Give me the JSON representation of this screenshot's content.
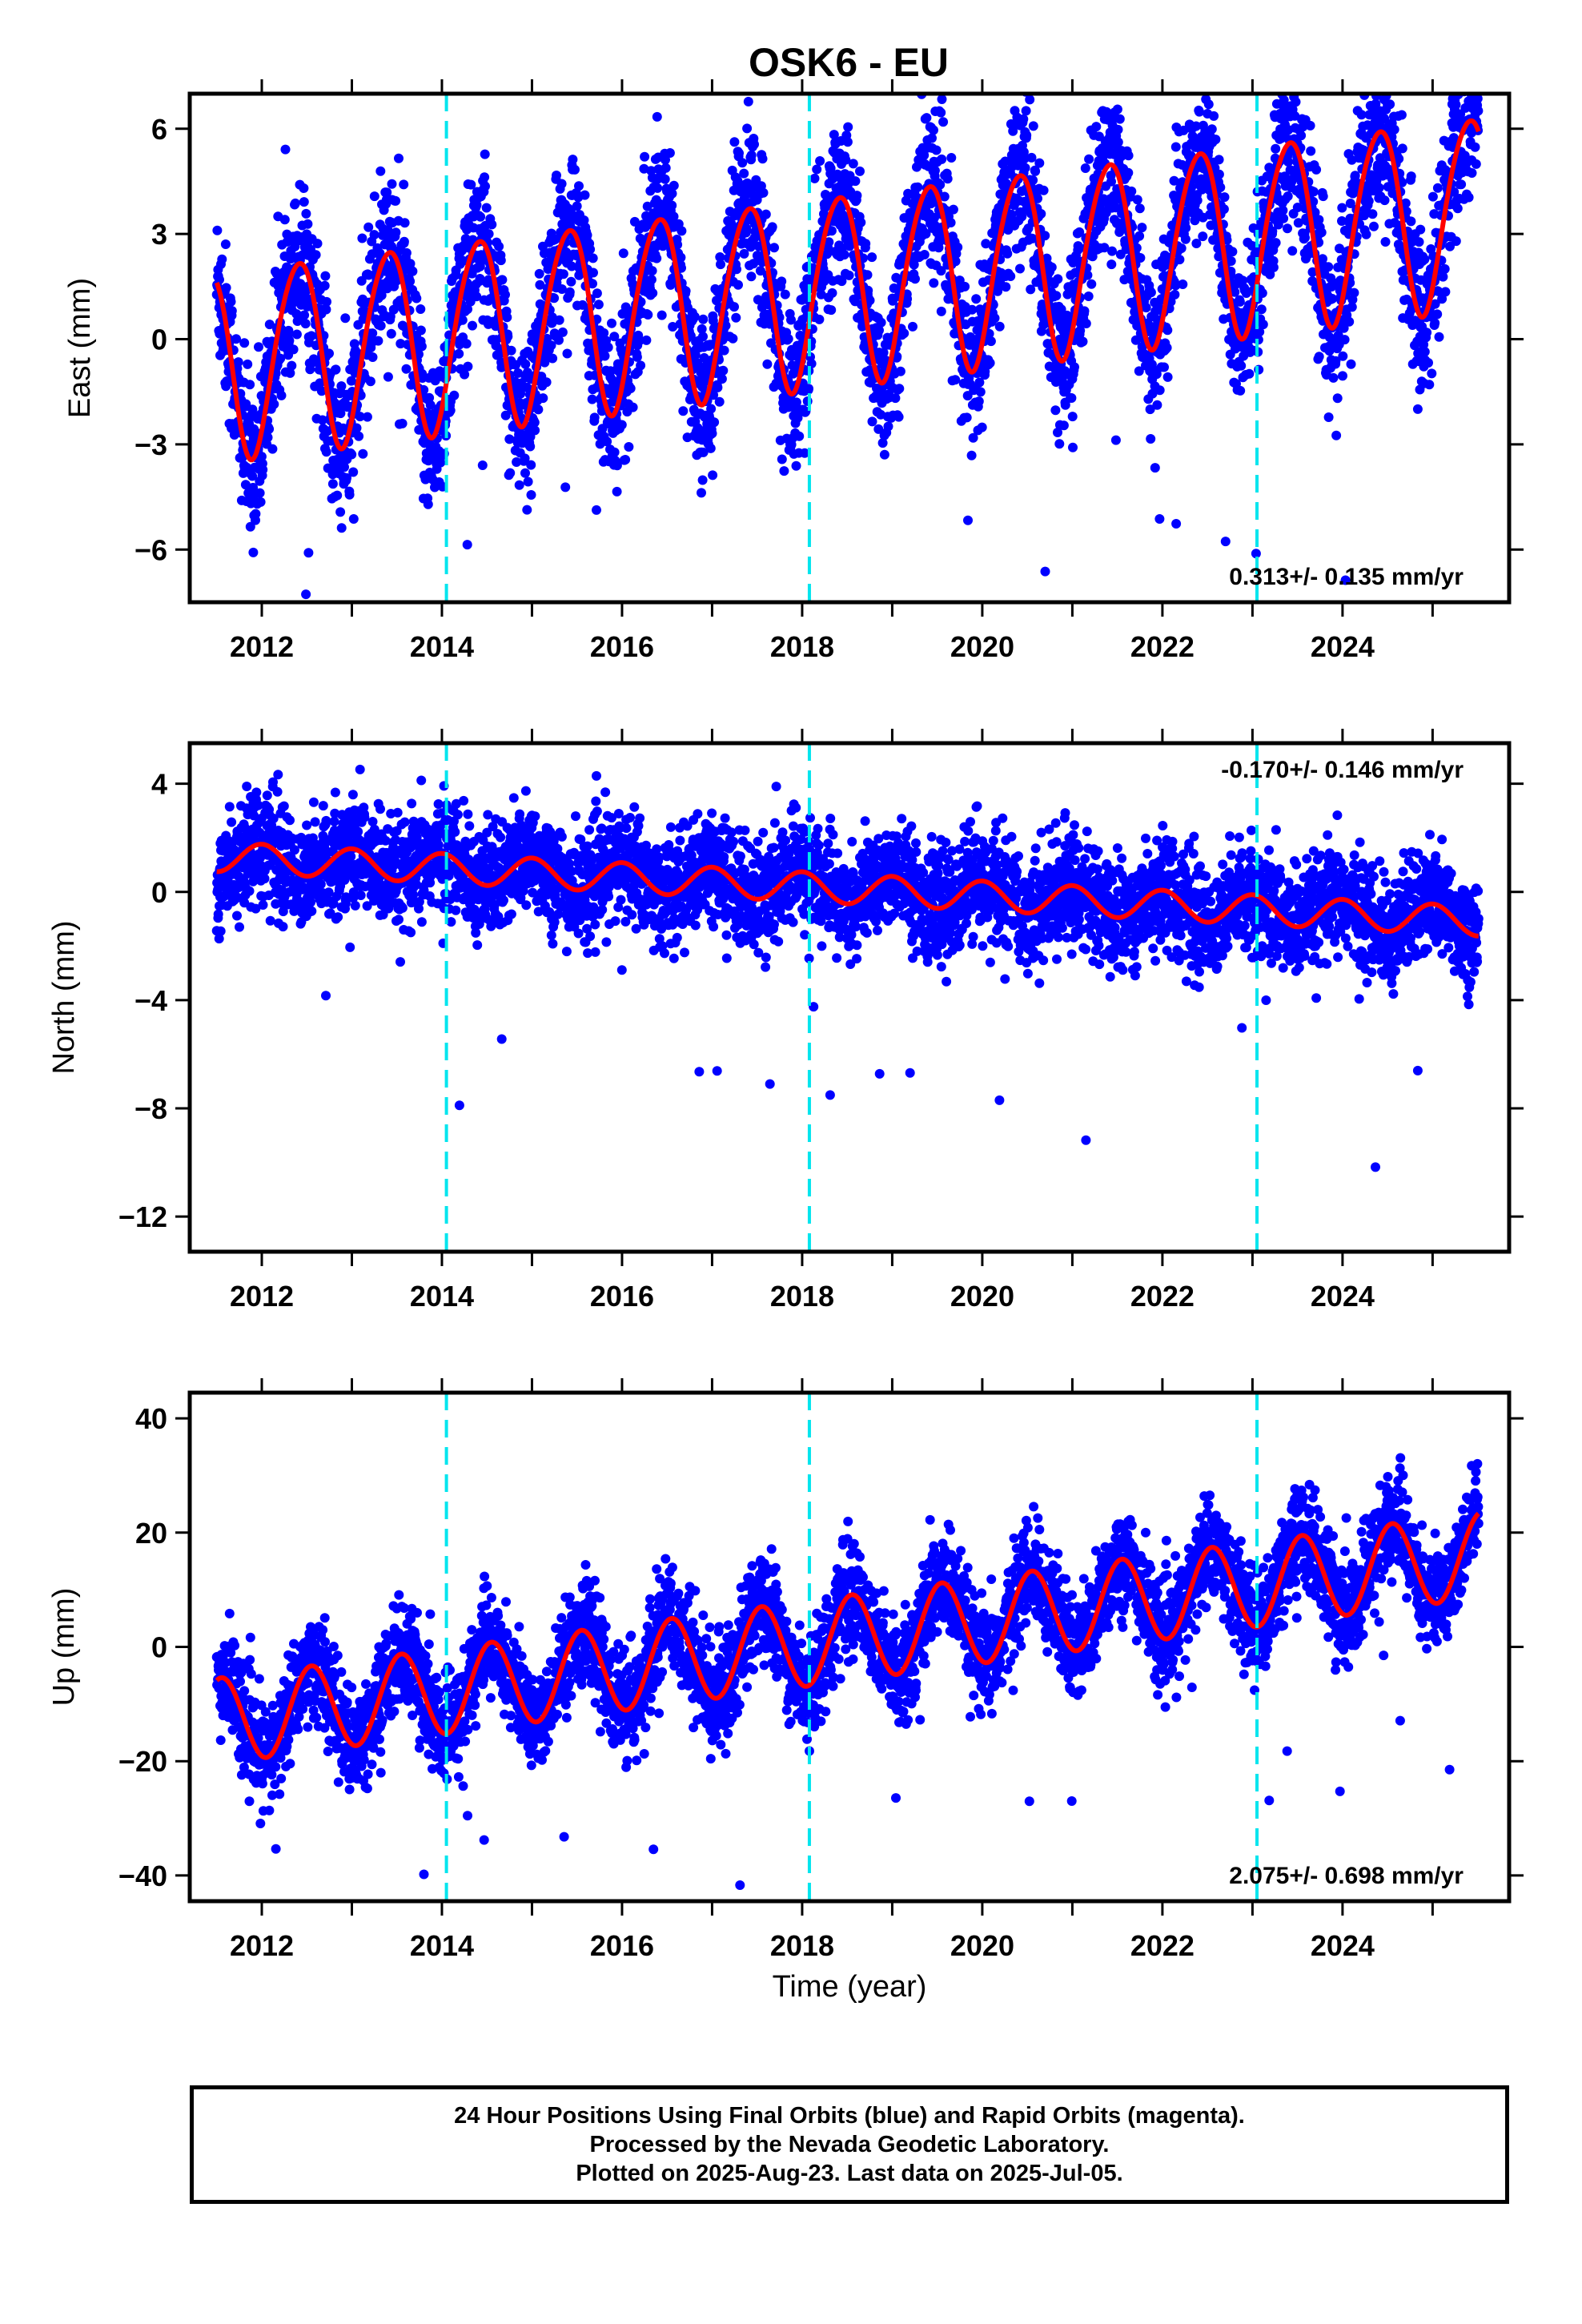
{
  "chart_data": [
    {
      "type": "scatter",
      "title": "OSK6 - EU",
      "ylabel": "East (mm)",
      "xlim": [
        2011.2,
        2025.85
      ],
      "ylim": [
        -7.5,
        7.0
      ],
      "xticks": [
        2012,
        2014,
        2016,
        2018,
        2020,
        2022,
        2024
      ],
      "yticks": [
        6,
        3,
        0,
        -3,
        -6
      ],
      "ytick_labels": [
        "6",
        "3",
        "0",
        "−3",
        "−6"
      ],
      "rate_label": "0.313+/- 0.135 mm/yr",
      "rate_position": "bottom-right",
      "steps": [
        2014.05,
        2018.08,
        2023.05
      ],
      "model": {
        "offset": -0.65,
        "rate": 0.313,
        "annual_amp": 2.7,
        "annual_phase_peak": 2012.4
      },
      "series": [
        {
          "name": "Final Orbits",
          "color": "#0000ff",
          "kind": "points",
          "noise_sd": 1.1,
          "n_points": 4800
        },
        {
          "name": "model",
          "color": "#ff0000",
          "kind": "line"
        }
      ]
    },
    {
      "type": "scatter",
      "ylabel": "North (mm)",
      "xlim": [
        2011.2,
        2025.85
      ],
      "ylim": [
        -13.3,
        5.5
      ],
      "xticks": [
        2012,
        2014,
        2016,
        2018,
        2020,
        2022,
        2024
      ],
      "yticks": [
        4,
        0,
        -4,
        -8,
        -12
      ],
      "ytick_labels": [
        "4",
        "0",
        "−4",
        "−8",
        "−12"
      ],
      "rate_label": "-0.170+/- 0.146 mm/yr",
      "rate_position": "top-right",
      "steps": [
        2014.05,
        2018.08,
        2023.05
      ],
      "model": {
        "offset": 1.3,
        "rate": -0.17,
        "annual_amp": 0.55,
        "annual_phase_peak": 2012.0
      },
      "series": [
        {
          "name": "Final Orbits",
          "color": "#0000ff",
          "kind": "points",
          "noise_sd": 1.0,
          "n_points": 4800
        },
        {
          "name": "model",
          "color": "#ff0000",
          "kind": "line"
        }
      ]
    },
    {
      "type": "scatter",
      "ylabel": "Up (mm)",
      "xlabel": "Time (year)",
      "xlim": [
        2011.2,
        2025.85
      ],
      "ylim": [
        -44.5,
        44.5
      ],
      "xticks": [
        2012,
        2014,
        2016,
        2018,
        2020,
        2022,
        2024
      ],
      "yticks": [
        40,
        20,
        0,
        -20,
        -40
      ],
      "ytick_labels": [
        "40",
        "20",
        "0",
        "−20",
        "−40"
      ],
      "rate_label": "2.075+/- 0.698 mm/yr",
      "rate_position": "bottom-right",
      "steps": [
        2014.05,
        2018.08,
        2023.05
      ],
      "model": {
        "offset": -13.0,
        "rate": 2.075,
        "annual_amp": 7.5,
        "annual_phase_peak": 2012.55
      },
      "series": [
        {
          "name": "Final Orbits",
          "color": "#0000ff",
          "kind": "points",
          "noise_sd": 4.5,
          "n_points": 4800
        },
        {
          "name": "model",
          "color": "#ff0000",
          "kind": "line"
        }
      ]
    }
  ],
  "caption": {
    "line1": "24 Hour Positions Using Final Orbits (blue) and Rapid Orbits (magenta).",
    "line2": "Processed by the Nevada Geodetic Laboratory.",
    "line3": "Plotted on 2025-Aug-23. Last data on 2025-Jul-05."
  },
  "colors": {
    "points": "#0000ff",
    "model": "#ff0000",
    "steps": "#00e5ee",
    "frame": "#000000"
  }
}
